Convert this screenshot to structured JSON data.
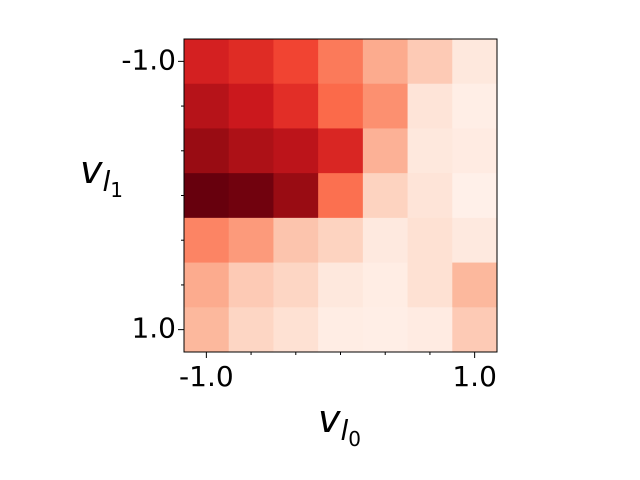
{
  "chart_data": {
    "type": "heatmap",
    "xlabel": {
      "base": "v",
      "sub": "l",
      "subsub": "0"
    },
    "ylabel": {
      "base": "v",
      "sub": "l",
      "subsub": "1"
    },
    "x": [
      -1,
      -0.6667,
      -0.3333,
      0,
      0.3333,
      0.6667,
      1
    ],
    "y": [
      -1,
      -0.6667,
      -0.3333,
      0,
      0.3333,
      0.6667,
      1
    ],
    "values": [
      [
        0.72,
        0.68,
        0.6,
        0.45,
        0.3,
        0.2,
        0.08
      ],
      [
        0.82,
        0.75,
        0.67,
        0.5,
        0.38,
        0.1,
        0.04
      ],
      [
        0.9,
        0.85,
        0.8,
        0.7,
        0.28,
        0.08,
        0.06
      ],
      [
        1.0,
        0.98,
        0.9,
        0.48,
        0.17,
        0.1,
        0.03
      ],
      [
        0.42,
        0.35,
        0.22,
        0.17,
        0.07,
        0.12,
        0.07
      ],
      [
        0.3,
        0.2,
        0.16,
        0.08,
        0.05,
        0.12,
        0.26
      ],
      [
        0.26,
        0.16,
        0.12,
        0.05,
        0.04,
        0.06,
        0.2
      ]
    ],
    "colormap": "Reds",
    "colormap_stops": [
      "#fff5f0",
      "#fee0d2",
      "#fcbba1",
      "#fc9272",
      "#fb6a4a",
      "#ef3b2c",
      "#cb181d",
      "#a50f15",
      "#67000d"
    ],
    "xlim": [
      -1.1667,
      1.1667
    ],
    "ylim": [
      1.1667,
      -1.1667
    ],
    "xticks": [
      {
        "value": -1,
        "label": "-1.0"
      },
      {
        "value": 1,
        "label": "1.0"
      }
    ],
    "yticks": [
      {
        "value": -1,
        "label": "-1.0"
      },
      {
        "value": 1,
        "label": "1.0"
      }
    ],
    "minor_xticks": [
      -0.6667,
      -0.3333,
      0,
      0.3333,
      0.6667
    ],
    "minor_yticks": [
      -0.6667,
      -0.3333,
      0,
      0.3333,
      0.6667
    ]
  }
}
